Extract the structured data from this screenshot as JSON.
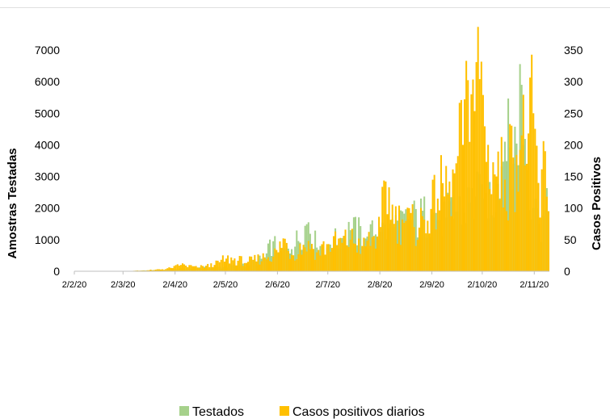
{
  "chart_data": {
    "type": "bar",
    "title": "",
    "y_left_label": "Amostras Testadas",
    "y_right_label": "Casos Positivos",
    "y_left_ticks": [
      "0",
      "1000",
      "2000",
      "3000",
      "4000",
      "5000",
      "6000",
      "7000"
    ],
    "y_right_ticks": [
      "0",
      "50",
      "100",
      "150",
      "200",
      "250",
      "300",
      "350"
    ],
    "y_left_lim": [
      0,
      7000
    ],
    "y_right_lim": [
      0,
      350
    ],
    "x_ticks": [
      "2/2/20",
      "2/3/20",
      "2/4/20",
      "2/5/20",
      "2/6/20",
      "2/7/20",
      "2/8/20",
      "2/9/20",
      "2/10/20",
      "2/11/20"
    ],
    "x_range": [
      "2020-02-02",
      "2020-11-10"
    ],
    "legend_position": "bottom",
    "colors": {
      "testados": "#a6d18b",
      "casos": "#ffc000"
    },
    "series": [
      {
        "name": "Testados",
        "axis": "left",
        "points": [
          [
            "2020-02-02",
            0
          ],
          [
            "2020-03-02",
            5
          ],
          [
            "2020-03-20",
            30
          ],
          [
            "2020-04-02",
            60
          ],
          [
            "2020-04-15",
            100
          ],
          [
            "2020-05-02",
            140
          ],
          [
            "2020-05-15",
            250
          ],
          [
            "2020-05-25",
            400
          ],
          [
            "2020-05-30",
            950
          ],
          [
            "2020-06-02",
            550
          ],
          [
            "2020-06-10",
            700
          ],
          [
            "2020-06-20",
            1550
          ],
          [
            "2020-06-25",
            750
          ],
          [
            "2020-07-02",
            850
          ],
          [
            "2020-07-10",
            1050
          ],
          [
            "2020-07-15",
            1300
          ],
          [
            "2020-07-25",
            1100
          ],
          [
            "2020-08-02",
            1250
          ],
          [
            "2020-08-10",
            1400
          ],
          [
            "2020-08-20",
            1600
          ],
          [
            "2020-09-02",
            1800
          ],
          [
            "2020-09-10",
            1700
          ],
          [
            "2020-09-20",
            2000
          ],
          [
            "2020-10-02",
            2300
          ],
          [
            "2020-10-10",
            2400
          ],
          [
            "2020-10-15",
            4100
          ],
          [
            "2020-10-20",
            3400
          ],
          [
            "2020-10-25",
            5900
          ],
          [
            "2020-10-28",
            3200
          ],
          [
            "2020-11-02",
            2300
          ],
          [
            "2020-11-05",
            1500
          ],
          [
            "2020-11-10",
            1900
          ]
        ]
      },
      {
        "name": "Casos positivos diarios",
        "axis": "right",
        "points": [
          [
            "2020-02-02",
            0
          ],
          [
            "2020-03-02",
            0
          ],
          [
            "2020-03-20",
            2
          ],
          [
            "2020-03-31",
            5
          ],
          [
            "2020-04-05",
            10
          ],
          [
            "2020-04-15",
            6
          ],
          [
            "2020-04-25",
            10
          ],
          [
            "2020-05-02",
            20
          ],
          [
            "2020-05-15",
            15
          ],
          [
            "2020-05-25",
            22
          ],
          [
            "2020-06-02",
            30
          ],
          [
            "2020-06-05",
            52
          ],
          [
            "2020-06-10",
            26
          ],
          [
            "2020-06-20",
            48
          ],
          [
            "2020-06-25",
            30
          ],
          [
            "2020-07-02",
            43
          ],
          [
            "2020-07-10",
            45
          ],
          [
            "2020-07-15",
            50
          ],
          [
            "2020-07-22",
            40
          ],
          [
            "2020-07-31",
            55
          ],
          [
            "2020-08-02",
            70
          ],
          [
            "2020-08-05",
            142
          ],
          [
            "2020-08-10",
            75
          ],
          [
            "2020-08-15",
            82
          ],
          [
            "2020-08-22",
            70
          ],
          [
            "2020-08-30",
            80
          ],
          [
            "2020-09-05",
            115
          ],
          [
            "2020-09-12",
            142
          ],
          [
            "2020-09-15",
            155
          ],
          [
            "2020-09-20",
            200
          ],
          [
            "2020-09-25",
            280
          ],
          [
            "2020-09-30",
            304
          ],
          [
            "2020-10-05",
            200
          ],
          [
            "2020-10-10",
            150
          ],
          [
            "2020-10-15",
            145
          ],
          [
            "2020-10-20",
            180
          ],
          [
            "2020-10-25",
            215
          ],
          [
            "2020-10-28",
            170
          ],
          [
            "2020-11-01",
            250
          ],
          [
            "2020-11-05",
            85
          ],
          [
            "2020-11-08",
            190
          ],
          [
            "2020-11-10",
            95
          ]
        ]
      }
    ]
  }
}
